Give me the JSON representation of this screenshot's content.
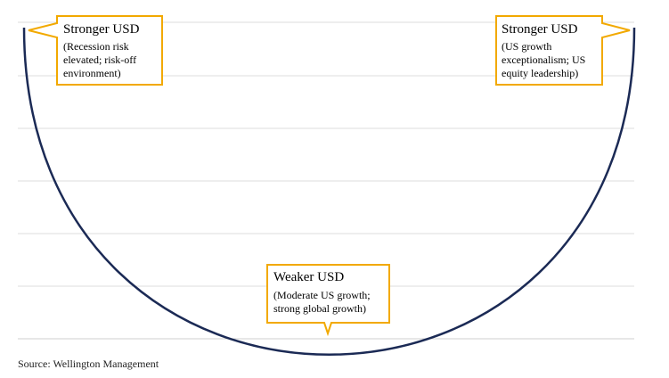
{
  "chart_data": {
    "type": "line",
    "title": "",
    "xlabel": "",
    "ylabel": "",
    "grid": true,
    "curve": {
      "shape": "u-curve",
      "color": "#1b2a55"
    },
    "callout_color": "#f2a900",
    "annotations": [
      {
        "id": "left",
        "title": "Stronger USD",
        "lines": [
          "(Recession risk",
          "elevated; risk-off",
          "environment)"
        ]
      },
      {
        "id": "center",
        "title": "Weaker USD",
        "lines": [
          "(Moderate US growth;",
          "strong global growth)"
        ]
      },
      {
        "id": "right",
        "title": "Stronger USD",
        "lines": [
          "(US growth",
          "exceptionalism; US",
          "equity leadership)"
        ]
      }
    ]
  },
  "source": "Source: Wellington Management"
}
